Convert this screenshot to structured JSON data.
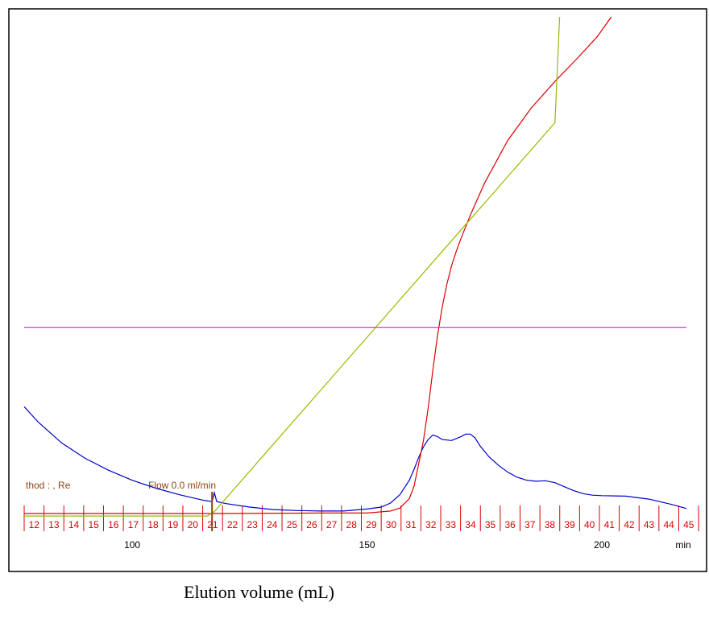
{
  "chart_data": {
    "type": "line",
    "xlabel": "Elution volume (mL)",
    "x_unit": "min",
    "x_ticks": [
      100,
      150,
      200
    ],
    "xlim": [
      77,
      218
    ],
    "fractions": [
      "12",
      "13",
      "14",
      "15",
      "16",
      "17",
      "18",
      "19",
      "20",
      "21",
      "22",
      "23",
      "24",
      "25",
      "26",
      "27",
      "28",
      "29",
      "30",
      "31",
      "32",
      "33",
      "34",
      "35",
      "36",
      "37",
      "38",
      "39",
      "40",
      "41",
      "42",
      "43",
      "44",
      "45"
    ],
    "annotations": {
      "method_text": "thod : , Re",
      "flow_text": "Flow 0.0 ml/min",
      "flow_marker_x": 117
    },
    "colors": {
      "uv": "#0000cc",
      "conductivity": "#dd0000",
      "gradient": "#99bb00",
      "concentration": "#dd33dd",
      "fraction": "#dd0000",
      "marker": "#8b4513"
    },
    "series": [
      {
        "key": "uv",
        "x": [
          77,
          80,
          85,
          90,
          95,
          100,
          105,
          110,
          115,
          117,
          117.5,
          118,
          120,
          125,
          130,
          135,
          140,
          145,
          150,
          153,
          155,
          157,
          159,
          160,
          161,
          162,
          163,
          164,
          165,
          166,
          168,
          170,
          171,
          172,
          173,
          174,
          176,
          178,
          180,
          182,
          184,
          186,
          188,
          190,
          192,
          194,
          196,
          198,
          200,
          205,
          210,
          215,
          218
        ],
        "y": [
          0.265,
          0.234,
          0.192,
          0.161,
          0.137,
          0.117,
          0.101,
          0.088,
          0.077,
          0.074,
          0.092,
          0.074,
          0.07,
          0.063,
          0.058,
          0.056,
          0.055,
          0.055,
          0.059,
          0.063,
          0.071,
          0.088,
          0.117,
          0.139,
          0.163,
          0.184,
          0.199,
          0.208,
          0.205,
          0.199,
          0.197,
          0.205,
          0.21,
          0.21,
          0.202,
          0.187,
          0.164,
          0.147,
          0.133,
          0.123,
          0.117,
          0.115,
          0.116,
          0.112,
          0.104,
          0.096,
          0.09,
          0.087,
          0.086,
          0.085,
          0.079,
          0.068,
          0.06
        ]
      },
      {
        "key": "conductivity",
        "x": [
          77,
          100,
          120,
          140,
          150,
          155,
          157,
          159,
          160,
          161,
          162,
          163,
          164,
          165,
          166,
          167,
          168,
          169,
          170,
          172,
          175,
          180,
          185,
          190,
          195,
          199,
          202
        ],
        "y": [
          0.05,
          0.05,
          0.05,
          0.051,
          0.051,
          0.055,
          0.061,
          0.08,
          0.105,
          0.15,
          0.196,
          0.262,
          0.338,
          0.408,
          0.466,
          0.512,
          0.549,
          0.578,
          0.604,
          0.651,
          0.715,
          0.802,
          0.867,
          0.92,
          0.969,
          1.01,
          1.05
        ]
      },
      {
        "key": "gradient",
        "x": [
          77,
          116,
          117.5,
          120,
          130,
          140,
          150,
          160,
          170,
          180,
          190,
          191
        ],
        "y": [
          0.045,
          0.045,
          0.054,
          0.081,
          0.189,
          0.297,
          0.405,
          0.513,
          0.621,
          0.729,
          0.837,
          1.05
        ]
      },
      {
        "key": "concentration",
        "x": [
          77,
          218
        ],
        "y": [
          0.425,
          0.425
        ]
      }
    ]
  }
}
